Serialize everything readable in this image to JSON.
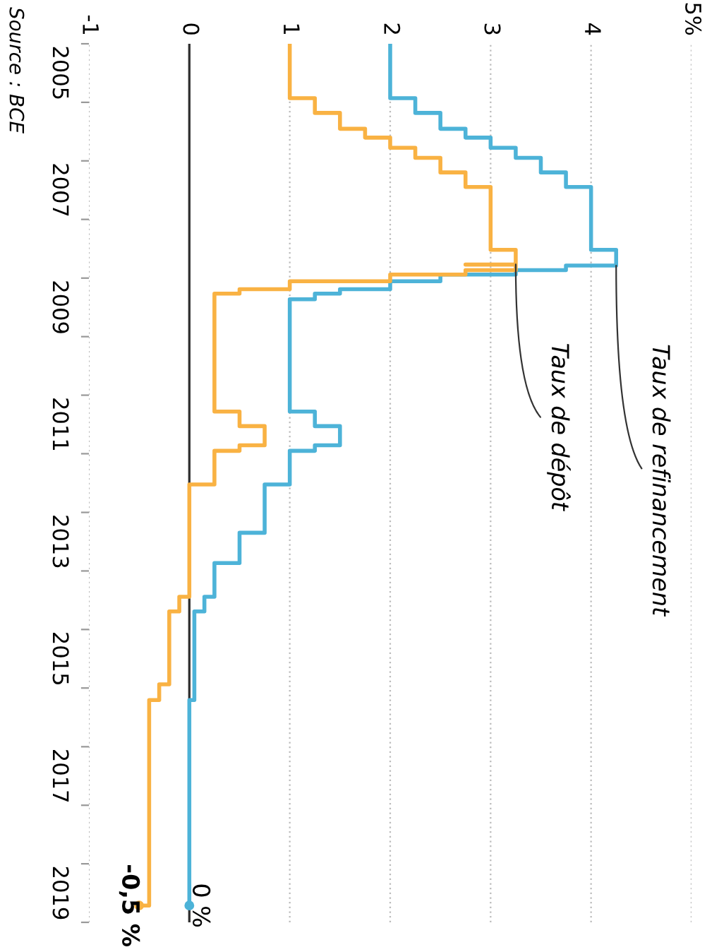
{
  "chart_data": {
    "type": "step",
    "orientation": "horizontal",
    "ylim": [
      "2020-01-01",
      "2005-01-01"
    ],
    "yticks": [
      {
        "value": "2005-01-01",
        "label": null
      },
      {
        "value": "2005-07-02",
        "label": "2005"
      },
      {
        "value": "2006-01-01",
        "label": null
      },
      {
        "value": "2007-01-01",
        "label": null
      },
      {
        "value": "2007-07-02",
        "label": "2007"
      },
      {
        "value": "2008-01-01",
        "label": null
      },
      {
        "value": "2009-01-01",
        "label": null
      },
      {
        "value": "2009-07-02",
        "label": "2009"
      },
      {
        "value": "2010-01-01",
        "label": null
      },
      {
        "value": "2011-01-01",
        "label": null
      },
      {
        "value": "2011-07-02",
        "label": "2011"
      },
      {
        "value": "2012-01-01",
        "label": null
      },
      {
        "value": "2013-01-01",
        "label": null
      },
      {
        "value": "2013-07-02",
        "label": "2013"
      },
      {
        "value": "2014-01-01",
        "label": null
      },
      {
        "value": "2015-01-01",
        "label": null
      },
      {
        "value": "2015-07-02",
        "label": "2015"
      },
      {
        "value": "2016-01-01",
        "label": null
      },
      {
        "value": "2017-01-01",
        "label": null
      },
      {
        "value": "2017-07-02",
        "label": "2017"
      },
      {
        "value": "2018-01-01",
        "label": null
      },
      {
        "value": "2019-01-01",
        "label": null
      },
      {
        "value": "2019-07-02",
        "label": "2019"
      },
      {
        "value": "2020-01-01",
        "label": null
      }
    ],
    "xlim": [
      -1,
      5
    ],
    "xticks": [
      -1,
      0,
      1,
      2,
      3,
      4,
      {
        "value": 5,
        "label": "5%"
      }
    ],
    "grid": "x",
    "legend": false,
    "ref_lines": [
      {
        "axis": "x",
        "value": 0,
        "label": null,
        "color": "#333333"
      }
    ],
    "series": [
      {
        "name": "Taux de refinancement",
        "color": "#4db3d8",
        "x": [
          "2005-01-01",
          "2005-12-06",
          "2006-03-08",
          "2006-06-15",
          "2006-08-09",
          "2006-10-11",
          "2006-12-13",
          "2007-03-14",
          "2007-06-13",
          "2008-07-09",
          "2008-10-15",
          "2008-11-12",
          "2008-12-10",
          "2009-01-21",
          "2009-03-11",
          "2009-04-08",
          "2009-05-13",
          "2011-04-13",
          "2011-07-13",
          "2011-11-09",
          "2011-12-14",
          "2012-07-11",
          "2013-05-08",
          "2013-11-13",
          "2014-06-11",
          "2014-09-10",
          "2016-03-16",
          "2019-09-18"
        ],
        "values": [
          2.0,
          2.25,
          2.5,
          2.75,
          3.0,
          3.25,
          3.5,
          3.75,
          4.0,
          4.25,
          3.75,
          3.25,
          2.5,
          2.0,
          1.5,
          1.25,
          1.0,
          1.25,
          1.5,
          1.25,
          1.0,
          0.75,
          0.5,
          0.25,
          0.15,
          0.05,
          0.0,
          0.0
        ],
        "value_labels": [
          null,
          null,
          null,
          null,
          null,
          null,
          null,
          null,
          null,
          null,
          null,
          null,
          null,
          null,
          null,
          null,
          null,
          null,
          null,
          null,
          null,
          null,
          null,
          null,
          null,
          null,
          null,
          "0 %"
        ]
      },
      {
        "name": "Taux de dépôt",
        "color": "#f9b243",
        "x": [
          "2005-01-01",
          "2005-12-06",
          "2006-03-08",
          "2006-06-15",
          "2006-08-09",
          "2006-10-11",
          "2006-12-13",
          "2007-03-14",
          "2007-06-13",
          "2008-07-09",
          "2008-10-08",
          "2008-10-09",
          "2008-11-12",
          "2008-12-10",
          "2009-01-21",
          "2009-03-11",
          "2009-04-08",
          "2011-04-13",
          "2011-07-13",
          "2011-11-09",
          "2011-12-14",
          "2012-07-11",
          "2014-06-11",
          "2014-09-10",
          "2015-12-09",
          "2016-03-16",
          "2019-09-18"
        ],
        "values": [
          1.0,
          1.25,
          1.5,
          1.75,
          2.0,
          2.25,
          2.5,
          2.75,
          3.0,
          3.25,
          2.75,
          3.25,
          2.75,
          2.0,
          1.0,
          0.5,
          0.25,
          0.5,
          0.75,
          0.5,
          0.25,
          0.0,
          -0.1,
          -0.2,
          -0.3,
          -0.4,
          -0.5
        ],
        "value_labels": [
          null,
          null,
          null,
          null,
          null,
          null,
          null,
          null,
          null,
          null,
          null,
          null,
          null,
          null,
          null,
          null,
          null,
          null,
          null,
          null,
          null,
          null,
          null,
          null,
          null,
          null,
          "-0,5 %"
        ]
      }
    ],
    "annotations": [
      "Source : BCE"
    ]
  }
}
